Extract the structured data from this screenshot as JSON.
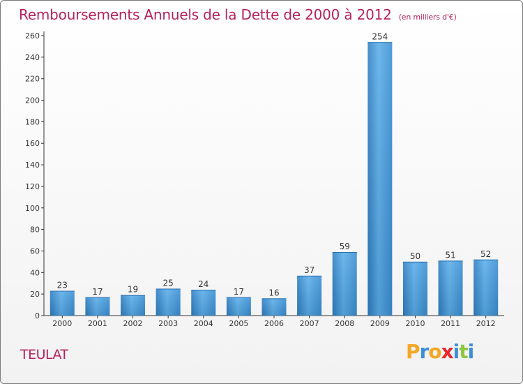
{
  "chart_data": {
    "type": "bar",
    "title": "Remboursements Annuels de la Dette de 2000 à 2012",
    "subtitle": "(en milliers d'€)",
    "xlabel": "",
    "ylabel": "",
    "categories": [
      "2000",
      "2001",
      "2002",
      "2003",
      "2004",
      "2005",
      "2006",
      "2007",
      "2008",
      "2009",
      "2010",
      "2011",
      "2012"
    ],
    "values": [
      23,
      17,
      19,
      25,
      24,
      17,
      16,
      37,
      59,
      254,
      50,
      51,
      52
    ],
    "ylim": [
      0,
      260
    ],
    "yticks": [
      0,
      20,
      40,
      60,
      80,
      100,
      120,
      140,
      160,
      180,
      200,
      220,
      240,
      260
    ],
    "grid": false,
    "bar_color": "#3f93d8"
  },
  "commune": "TEULAT",
  "logo": {
    "letters": [
      "P",
      "r",
      "o",
      "x",
      "i",
      "t",
      "i"
    ],
    "colors": [
      "#f5a623",
      "#3b8fd6",
      "#f5a623",
      "#e8272d",
      "#3b8fd6",
      "#8dc63f",
      "#3b8fd6"
    ]
  }
}
